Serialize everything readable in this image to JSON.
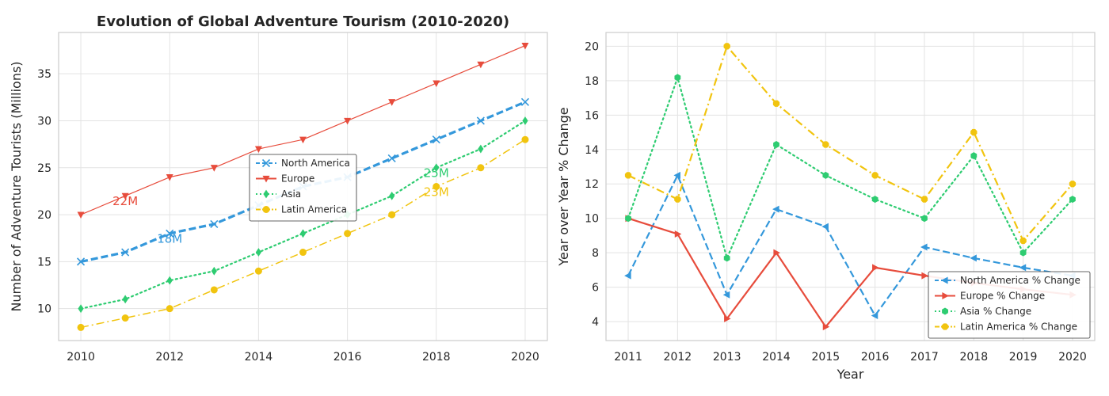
{
  "chart_data": [
    {
      "type": "line",
      "title": "Evolution of Global Adventure Tourism (2010-2020)",
      "xlabel": "",
      "ylabel": "Number of Adventure Tourists (Millions)",
      "x": [
        2010,
        2011,
        2012,
        2013,
        2014,
        2015,
        2016,
        2017,
        2018,
        2019,
        2020
      ],
      "xticks": [
        2010,
        2012,
        2014,
        2016,
        2018,
        2020
      ],
      "xlim": [
        2009.5,
        2020.5
      ],
      "ylim": [
        6.6,
        39.4
      ],
      "yticks": [
        10,
        15,
        20,
        25,
        30,
        35
      ],
      "grid": true,
      "legend": "center",
      "series": [
        {
          "name": "North America",
          "values": [
            15,
            16,
            18,
            19,
            21,
            23,
            24,
            26,
            28,
            30,
            32
          ],
          "color": "#3498db",
          "marker": "x-icon",
          "style": "dashed"
        },
        {
          "name": "Europe",
          "values": [
            20,
            22,
            24,
            25,
            27,
            28,
            30,
            32,
            34,
            36,
            38
          ],
          "color": "#e74c3c",
          "marker": "triangle-down-icon",
          "style": "solid"
        },
        {
          "name": "Asia",
          "values": [
            10,
            11,
            13,
            14,
            16,
            18,
            20,
            22,
            25,
            27,
            30
          ],
          "color": "#2ecc71",
          "marker": "diamond-icon",
          "style": "dotted"
        },
        {
          "name": "Latin America",
          "values": [
            8,
            9,
            10,
            12,
            14,
            16,
            18,
            20,
            23,
            25,
            28
          ],
          "color": "#f1c40f",
          "marker": "circle-icon",
          "style": "dashdot"
        }
      ],
      "annotations": [
        {
          "text": "22M",
          "x": 2011,
          "y": 21,
          "color": "#e74c3c"
        },
        {
          "text": "18M",
          "x": 2012,
          "y": 17,
          "color": "#3498db"
        },
        {
          "text": "25M",
          "x": 2018,
          "y": 24,
          "color": "#2ecc71"
        },
        {
          "text": "23M",
          "x": 2018,
          "y": 22,
          "color": "#f1c40f"
        }
      ]
    },
    {
      "type": "line",
      "title": "",
      "xlabel": "Year",
      "ylabel": "Year over Year % Change",
      "x": [
        2011,
        2012,
        2013,
        2014,
        2015,
        2016,
        2017,
        2018,
        2019,
        2020
      ],
      "xticks": [
        2011,
        2012,
        2013,
        2014,
        2015,
        2016,
        2017,
        2018,
        2019,
        2020
      ],
      "xlim": [
        2010.55,
        2020.45
      ],
      "ylim": [
        2.9,
        20.8
      ],
      "yticks": [
        4,
        6,
        8,
        10,
        12,
        14,
        16,
        18,
        20
      ],
      "grid": true,
      "legend": "bottom-right",
      "series": [
        {
          "name": "North America % Change",
          "values": [
            6.67,
            12.5,
            5.56,
            10.53,
            9.52,
            4.35,
            8.33,
            7.69,
            7.14,
            6.67
          ],
          "color": "#3498db",
          "marker": "triangle-left-icon",
          "style": "dashed"
        },
        {
          "name": "Europe % Change",
          "values": [
            10.0,
            9.09,
            4.17,
            8.0,
            3.7,
            7.14,
            6.67,
            6.25,
            5.88,
            5.56
          ],
          "color": "#e74c3c",
          "marker": "triangle-right-icon",
          "style": "solid"
        },
        {
          "name": "Asia % Change",
          "values": [
            10.0,
            18.18,
            7.69,
            14.29,
            12.5,
            11.11,
            10.0,
            13.64,
            8.0,
            11.11
          ],
          "color": "#2ecc71",
          "marker": "hexagon-icon",
          "style": "dotted"
        },
        {
          "name": "Latin America % Change",
          "values": [
            12.5,
            11.11,
            20.0,
            16.67,
            14.29,
            12.5,
            11.11,
            15.0,
            8.7,
            12.0
          ],
          "color": "#f1c40f",
          "marker": "octagon-icon",
          "style": "dashdot"
        }
      ]
    }
  ]
}
